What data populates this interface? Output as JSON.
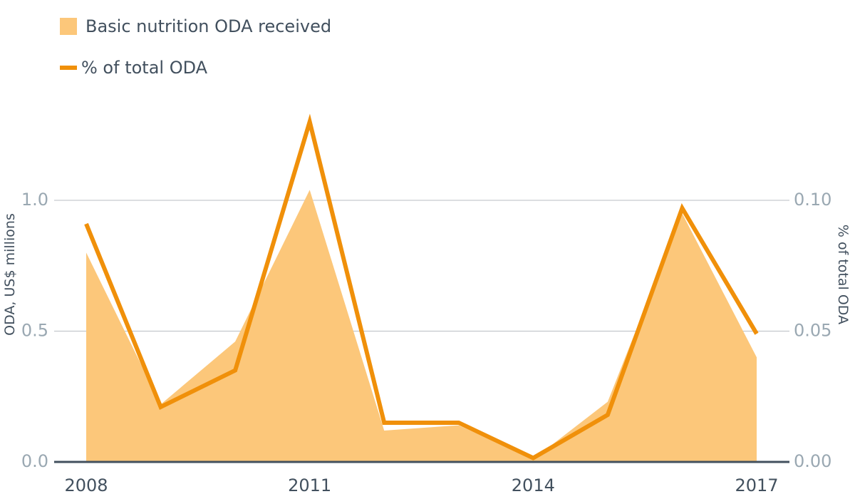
{
  "legend": {
    "area_label": "Basic nutrition ODA received",
    "line_label": "% of total ODA"
  },
  "colors": {
    "area": "#fcc77a",
    "line": "#f0900a",
    "grid": "#b9bec3",
    "baseline": "#42505e"
  },
  "chart_data": {
    "type": "area",
    "x": [
      2008,
      2009,
      2010,
      2011,
      2012,
      2013,
      2014,
      2015,
      2016,
      2017
    ],
    "x_tick_labels": [
      "2008",
      "2011",
      "2014",
      "2017"
    ],
    "x_tick_values": [
      2008,
      2011,
      2014,
      2017
    ],
    "y_left": {
      "label": "ODA, US$ millions",
      "ylim": [
        0,
        1.0
      ],
      "ticks": [
        "0.0",
        "0.5",
        "1.0"
      ],
      "tick_values": [
        0,
        0.5,
        1.0
      ]
    },
    "y_right": {
      "label": "% of total ODA",
      "ylim": [
        0,
        0.1
      ],
      "ticks": [
        "0.00",
        "0.05",
        "0.10"
      ],
      "tick_values": [
        0,
        0.05,
        0.1
      ]
    },
    "series": [
      {
        "name": "Basic nutrition ODA received",
        "type": "area",
        "axis": "left",
        "values": [
          0.8,
          0.22,
          0.46,
          1.04,
          0.12,
          0.14,
          0.01,
          0.23,
          0.95,
          0.4
        ]
      },
      {
        "name": "% of total ODA",
        "type": "line",
        "axis": "right",
        "values": [
          0.091,
          0.021,
          0.035,
          0.13,
          0.015,
          0.015,
          0.0015,
          0.018,
          0.097,
          0.049
        ]
      }
    ],
    "grid": true,
    "legend_position": "top-left"
  }
}
